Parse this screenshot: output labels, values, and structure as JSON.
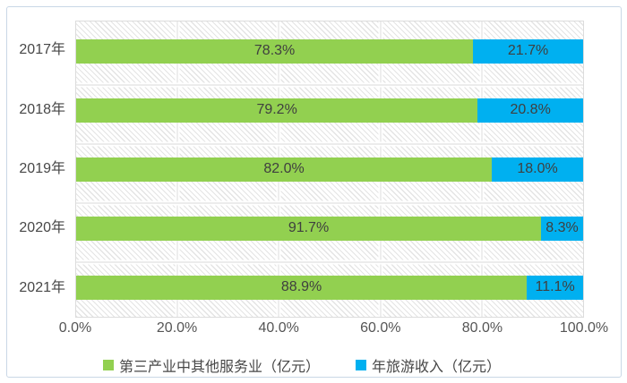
{
  "chart_data": {
    "type": "bar",
    "orientation": "horizontal",
    "stacked": true,
    "title": "",
    "categories": [
      "2017年",
      "2018年",
      "2019年",
      "2020年",
      "2021年"
    ],
    "series": [
      {
        "name": "第三产业中其他服务业（亿元）",
        "color": "#92d050",
        "values": [
          78.3,
          79.2,
          82.0,
          91.7,
          88.9
        ],
        "labels": [
          "78.3%",
          "79.2%",
          "82.0%",
          "91.7%",
          "88.9%"
        ]
      },
      {
        "name": "年旅游收入（亿元）",
        "color": "#00b0f0",
        "values": [
          21.7,
          20.8,
          18.0,
          8.3,
          11.1
        ],
        "labels": [
          "21.7%",
          "20.8%",
          "18.0%",
          "8.3%",
          "11.1%"
        ]
      }
    ],
    "x_axis": {
      "range": [
        0,
        100
      ],
      "tick_values": [
        0,
        20,
        40,
        60,
        80,
        100
      ],
      "tick_labels": [
        "0.0%",
        "20.0%",
        "40.0%",
        "60.0%",
        "80.0%",
        "100.0%"
      ],
      "gridlines": true
    },
    "y_axis": {
      "gridlines": true
    },
    "legend": {
      "position": "bottom"
    },
    "plot_background": "diagonal-hatch"
  },
  "styles": {
    "series_green": "#92d050",
    "series_blue": "#00b0f0",
    "bar_label_color": "#3f3f3f",
    "axis_text_color": "#555555",
    "frame_border": "#c9d7e6",
    "gridline": "#d9d9d9",
    "hatch_line": "#e4e4e4"
  }
}
